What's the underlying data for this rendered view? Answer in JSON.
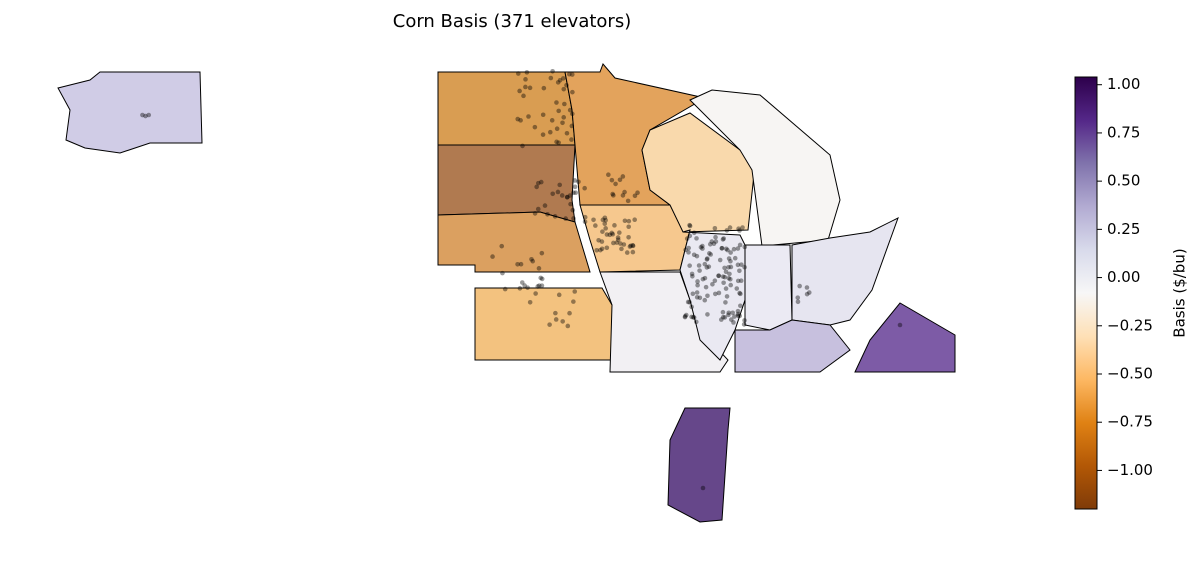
{
  "chart_data": {
    "type": "choropleth-map",
    "title": "Corn Basis (371 elevators)",
    "colorbar": {
      "label": "Basis ($/bu)",
      "vlim": [
        -1.2,
        1.04
      ],
      "colormap": [
        "#7f3b08",
        "#b35806",
        "#e08214",
        "#fdb863",
        "#fee0b6",
        "#f7f7f7",
        "#d8daeb",
        "#b2abd2",
        "#8073ac",
        "#542788",
        "#2d004b"
      ],
      "ticks": [
        {
          "value": 1.0,
          "label": "1.00"
        },
        {
          "value": 0.75,
          "label": "0.75"
        },
        {
          "value": 0.5,
          "label": "0.50"
        },
        {
          "value": 0.25,
          "label": "0.25"
        },
        {
          "value": 0.0,
          "label": "0.00"
        },
        {
          "value": -0.25,
          "label": "−0.25"
        },
        {
          "value": -0.5,
          "label": "−0.50"
        },
        {
          "value": -0.75,
          "label": "−0.75"
        },
        {
          "value": -1.0,
          "label": "−1.00"
        }
      ]
    }
  }
}
